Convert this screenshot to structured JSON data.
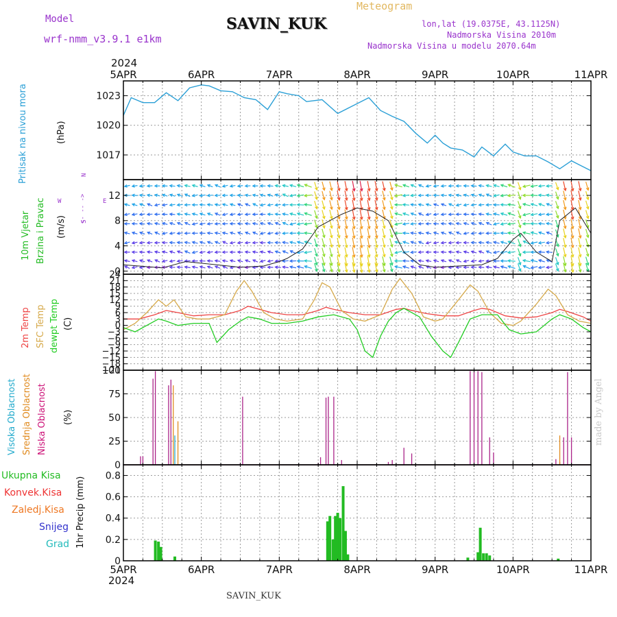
{
  "header": {
    "model_label": "Model",
    "model_name": "wrf-nmm_v3.9.1 e1km",
    "station": "SAVIN_KUK",
    "product": "Meteogram",
    "lonlat": "lon,lat (19.0375E, 43.1125N)",
    "elevation": "Nadmorska Visina 2010m",
    "model_elevation": "Nadmorska Visina u modelu 2070.64m",
    "year_top": "2024",
    "year_bottom": "2024",
    "footer_station": "SAVIN_KUK",
    "credit": "made by Angel"
  },
  "colors": {
    "pressure": "#2a9fd6",
    "temp2m": "#ee4444",
    "sfc": "#d6a94a",
    "dewpt": "#22cc22",
    "high_cloud": "#22aacc",
    "mid_cloud": "#e08a1e",
    "low_cloud": "#aa2288",
    "precip_total": "#22bb22",
    "conv": "#ee3333",
    "frz": "#ee7722",
    "snow": "#3333cc",
    "grad": "#22bbbb",
    "model_text": "#9933cc",
    "meteogram_text": "#e2b860"
  },
  "chart_data": [
    {
      "type": "line",
      "panel": "pressure",
      "ylabel_title": "Pritisak na nivou mora",
      "ylabel_unit": "(hPa)",
      "x_ticks": [
        "5APR",
        "6APR",
        "7APR",
        "8APR",
        "9APR",
        "10APR",
        "11APR"
      ],
      "ylim": [
        1014.5,
        1024.5
      ],
      "y_ticks": [
        1017,
        1020,
        1023
      ],
      "grid": true,
      "series": [
        {
          "x_days": [
            0,
            0.1,
            0.25,
            0.4,
            0.55,
            0.7,
            0.85,
            1.0,
            1.1,
            1.25,
            1.4,
            1.55,
            1.7,
            1.85,
            2.0,
            2.1,
            2.25,
            2.35,
            2.55,
            2.75,
            2.9,
            3.0,
            3.15,
            3.3,
            3.45,
            3.6,
            3.75,
            3.9,
            4.0,
            4.1,
            4.2,
            4.35,
            4.5,
            4.6,
            4.75,
            4.9,
            5.0,
            5.15,
            5.3,
            5.45,
            5.6,
            5.75,
            5.85,
            6.0
          ],
          "y": [
            1021,
            1022.8,
            1022.3,
            1022.3,
            1023.3,
            1022.5,
            1023.8,
            1024.1,
            1024,
            1023.5,
            1023.4,
            1022.8,
            1022.6,
            1021.6,
            1023.4,
            1023.2,
            1023,
            1022.4,
            1022.6,
            1021.2,
            1021.8,
            1022.2,
            1022.8,
            1021.5,
            1020.9,
            1020.4,
            1019.2,
            1018.2,
            1019.0,
            1018.2,
            1017.7,
            1017.5,
            1016.8,
            1017.8,
            1016.9,
            1018.1,
            1017.3,
            1016.9,
            1016.9,
            1016.3,
            1015.6,
            1016.4,
            1016.0,
            1015.4
          ]
        }
      ]
    },
    {
      "type": "scatter",
      "panel": "wind",
      "ylabel_title_1": "10m Vjetar",
      "ylabel_title_2": "Brzina i Pravac",
      "ylabel_unit": "(m/s)",
      "compass": {
        "north": "N",
        "south": "S",
        "west": "W",
        "east": "E",
        "arrows": "<- -- ->"
      },
      "ylim": [
        -0.5,
        14.5
      ],
      "y_ticks": [
        0,
        4,
        8,
        12
      ],
      "grid": true,
      "arrow_rows_y": [
        0.6,
        1.6,
        3,
        4.5,
        6,
        7.5,
        9,
        10.5,
        12,
        13.5
      ],
      "arrow_columns": 62,
      "speed_max": 14,
      "speed_series": {
        "x_days": [
          0,
          0.2,
          0.5,
          0.8,
          1.2,
          1.5,
          1.8,
          2.0,
          2.1,
          2.3,
          2.5,
          2.8,
          3.0,
          3.2,
          3.4,
          3.6,
          3.8,
          4.0,
          4.3,
          4.6,
          4.8,
          5.0,
          5.1,
          5.3,
          5.5,
          5.6,
          5.8,
          6.0
        ],
        "y": [
          1,
          0.8,
          0.5,
          1.5,
          1,
          0.6,
          0.8,
          1.5,
          2,
          3.5,
          7,
          9,
          10,
          9.5,
          8,
          3,
          1,
          0.6,
          0.8,
          1,
          2,
          5,
          6,
          3,
          1.5,
          8,
          10,
          6
        ]
      }
    },
    {
      "type": "line",
      "panel": "temperature",
      "ylabel_titles": [
        "2m Temp",
        "SFC Temp",
        "dewpt Temp"
      ],
      "ylabel_unit": "(C)",
      "ylim": [
        -21,
        24
      ],
      "y_ticks": [
        24,
        21,
        18,
        15,
        12,
        9,
        6,
        3,
        0,
        -3,
        -6,
        -9,
        -12,
        -15,
        -18,
        -21
      ],
      "y_tick_labels": [
        "24",
        "21",
        "18",
        "15",
        "12",
        "9",
        "6",
        "3",
        "0",
        "−3",
        "−6",
        "−9",
        "−12",
        "−15",
        "−18",
        "−21"
      ],
      "grid": true,
      "series": [
        {
          "name": "2m Temp",
          "x_days": [
            0,
            0.2,
            0.4,
            0.55,
            0.7,
            0.9,
            1.1,
            1.3,
            1.5,
            1.6,
            1.7,
            1.9,
            2.1,
            2.3,
            2.5,
            2.6,
            2.7,
            2.9,
            3.1,
            3.3,
            3.5,
            3.6,
            3.7,
            3.9,
            4.1,
            4.3,
            4.5,
            4.6,
            4.7,
            4.9,
            5.1,
            5.3,
            5.5,
            5.6,
            5.7,
            5.9,
            6.0
          ],
          "y": [
            3,
            3,
            5,
            7,
            6,
            4.5,
            5,
            5,
            7,
            9,
            8,
            6,
            5,
            5,
            7,
            8.5,
            7.5,
            6,
            5,
            5,
            7.5,
            8,
            7,
            5.5,
            4.5,
            4.5,
            7,
            8,
            7.5,
            4.5,
            3.5,
            4,
            6,
            7.5,
            6.5,
            4,
            2
          ]
        },
        {
          "name": "SFC Temp",
          "x_days": [
            0,
            0.15,
            0.3,
            0.45,
            0.55,
            0.65,
            0.8,
            0.95,
            1.1,
            1.3,
            1.45,
            1.55,
            1.65,
            1.8,
            1.95,
            2.1,
            2.3,
            2.45,
            2.55,
            2.65,
            2.8,
            2.95,
            3.1,
            3.3,
            3.45,
            3.55,
            3.7,
            3.85,
            4.0,
            4.1,
            4.3,
            4.45,
            4.55,
            4.7,
            4.85,
            5.0,
            5.1,
            5.3,
            5.45,
            5.55,
            5.7,
            5.85,
            6.0
          ],
          "y": [
            -2,
            1,
            6,
            12,
            9,
            12,
            4,
            3,
            3,
            5,
            16,
            21,
            16,
            6,
            3,
            2,
            3,
            12,
            20,
            18,
            7,
            3,
            2,
            5,
            17,
            22,
            15,
            4,
            2,
            3,
            12,
            19,
            16,
            6,
            1,
            0,
            2,
            10,
            17,
            14,
            5,
            2,
            1
          ]
        },
        {
          "name": "dewpt Temp",
          "x_days": [
            0,
            0.15,
            0.3,
            0.45,
            0.55,
            0.7,
            0.9,
            1.1,
            1.2,
            1.35,
            1.5,
            1.6,
            1.75,
            1.9,
            2.1,
            2.3,
            2.5,
            2.7,
            2.9,
            3.0,
            3.1,
            3.2,
            3.3,
            3.4,
            3.5,
            3.6,
            3.8,
            3.95,
            4.1,
            4.2,
            4.3,
            4.45,
            4.6,
            4.8,
            4.95,
            5.1,
            5.3,
            5.5,
            5.6,
            5.75,
            5.9,
            6.0
          ],
          "y": [
            -1,
            -3,
            0,
            3,
            2,
            0,
            1,
            1,
            -8,
            -2,
            2,
            4,
            3,
            1,
            1,
            2,
            4,
            5,
            3,
            -2,
            -12,
            -15,
            -5,
            2,
            6,
            8,
            4,
            -5,
            -12,
            -15,
            -8,
            3,
            5,
            5,
            -2,
            -4,
            -3,
            3,
            5,
            3,
            -1,
            -3
          ]
        }
      ]
    },
    {
      "type": "bar",
      "panel": "clouds",
      "ylabel_titles": [
        "Visoka Oblacnost",
        "Srednja Oblacnost",
        "Niska Oblacnost"
      ],
      "ylabel_unit": "(%)",
      "ylim": [
        0,
        100
      ],
      "y_ticks": [
        0,
        25,
        50,
        75,
        100
      ],
      "grid": true,
      "series": [
        {
          "name": "Niska Oblacnost",
          "x_days": [
            0.22,
            0.25,
            0.38,
            0.41,
            0.58,
            0.61,
            1.5,
            1.53,
            2.5,
            2.53,
            2.6,
            2.63,
            2.7,
            2.8,
            3.4,
            3.45,
            3.6,
            3.7,
            4.45,
            4.5,
            4.55,
            4.6,
            4.7,
            4.75,
            5.55,
            5.6,
            5.65,
            5.7,
            5.75
          ],
          "y": [
            9,
            9,
            91,
            99,
            84,
            90,
            2,
            72,
            2,
            8,
            71,
            72,
            72,
            5,
            3,
            5,
            18,
            12,
            99,
            98,
            99,
            98,
            29,
            13,
            6,
            3,
            29,
            98,
            29
          ]
        },
        {
          "name": "Srednja Oblacnost",
          "x_days": [
            0.64,
            0.7,
            5.6
          ],
          "y": [
            84,
            46,
            31
          ]
        },
        {
          "name": "Visoka Oblacnost",
          "x_days": [
            0.66
          ],
          "y": [
            31
          ]
        }
      ]
    },
    {
      "type": "bar",
      "panel": "precip",
      "ylabel_unit": "1hr Precip (mm)",
      "legend": [
        "Ukupna Kisa",
        "Konvek.Kisa",
        "Zaledj.Kisa",
        "Snijeg",
        "Grad"
      ],
      "ylim": [
        0,
        0.9
      ],
      "y_ticks": [
        0,
        0.2,
        0.4,
        0.6,
        0.8
      ],
      "y_tick_labels": [
        "0",
        "0.2",
        "0.4",
        "0.6",
        "0.8"
      ],
      "grid": true,
      "series": [
        {
          "name": "Ukupna Kisa",
          "x_days": [
            0.41,
            0.45,
            0.48,
            0.66,
            2.62,
            2.65,
            2.69,
            2.72,
            2.75,
            2.78,
            2.82,
            2.85,
            2.88,
            4.42,
            4.55,
            4.58,
            4.62,
            4.66,
            4.7,
            5.58
          ],
          "y": [
            0.19,
            0.18,
            0.13,
            0.04,
            0.37,
            0.42,
            0.2,
            0.42,
            0.45,
            0.4,
            0.7,
            0.28,
            0.06,
            0.03,
            0.08,
            0.31,
            0.07,
            0.07,
            0.05,
            0.02
          ]
        }
      ]
    }
  ]
}
